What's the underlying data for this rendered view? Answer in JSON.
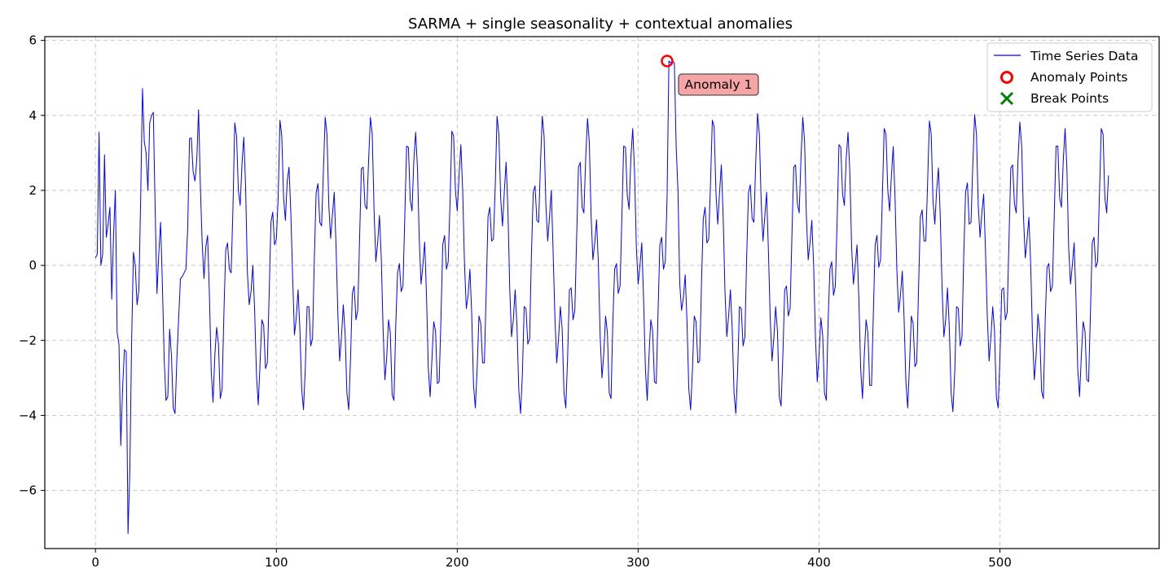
{
  "chart_data": {
    "type": "line",
    "title": "SARMA + single seasonality + contextual anomalies",
    "xlabel": "",
    "ylabel": "",
    "xlim": [
      -28,
      588
    ],
    "ylim": [
      -7.55,
      6.1
    ],
    "x_ticks": [
      0,
      100,
      200,
      300,
      400,
      500
    ],
    "y_ticks": [
      -6,
      -4,
      -2,
      0,
      2,
      4,
      6
    ],
    "x_tick_labels": [
      "0",
      "100",
      "200",
      "300",
      "400",
      "500"
    ],
    "y_tick_labels": [
      "−6",
      "−4",
      "−2",
      "0",
      "2",
      "4",
      "6"
    ],
    "grid": true,
    "legend_position": "top-right",
    "series": [
      {
        "name": "Time Series Data",
        "color": "#0000ff",
        "y": [
          0.2,
          0.3,
          3.55,
          0.0,
          0.3,
          2.95,
          0.75,
          1.1,
          1.55,
          -0.9,
          0.8,
          2.0,
          -1.8,
          -2.1,
          -4.8,
          -3.3,
          -2.25,
          -2.3,
          -7.15,
          -5.5,
          -2.0,
          0.35,
          0.0,
          -1.05,
          -0.65,
          1.8,
          4.72,
          3.3,
          3.0,
          2.0,
          3.8,
          4.0,
          4.08,
          1.5,
          -0.75,
          0.3,
          1.15,
          -0.5,
          -2.5,
          -3.6,
          -3.5,
          -1.7,
          -2.4,
          -3.8,
          -3.95,
          -2.5,
          -1.4,
          -0.35,
          -0.3,
          -0.2,
          -0.1,
          1.0,
          3.38,
          3.4,
          2.5,
          2.25,
          2.8,
          4.15,
          2.1,
          0.6,
          -0.35,
          0.5,
          0.8,
          -0.8,
          -2.8,
          -3.65,
          -2.4,
          -1.65,
          -2.1,
          -3.55,
          -3.3,
          -1.3,
          0.4,
          0.6,
          -0.1,
          -0.2,
          1.5,
          3.8,
          3.45,
          2.0,
          1.6,
          2.7,
          3.42,
          2.1,
          -0.2,
          -1.05,
          -0.7,
          0.0,
          -1.2,
          -2.9,
          -3.72,
          -2.6,
          -1.45,
          -1.6,
          -2.75,
          -2.6,
          -0.8,
          1.15,
          1.42,
          0.55,
          0.7,
          1.8,
          3.87,
          3.45,
          1.8,
          1.2,
          2.25,
          2.62,
          1.4,
          -0.3,
          -1.85,
          -1.4,
          -0.65,
          -1.7,
          -3.3,
          -3.85,
          -2.75,
          -1.1,
          -1.1,
          -2.15,
          -1.95,
          0.2,
          1.95,
          2.18,
          1.15,
          1.05,
          2.5,
          3.95,
          3.48,
          1.6,
          0.72,
          1.35,
          1.95,
          0.5,
          -1.3,
          -2.55,
          -1.9,
          -1.05,
          -1.8,
          -3.4,
          -3.85,
          -2.5,
          -0.75,
          -0.55,
          -1.45,
          -1.2,
          0.7,
          2.58,
          2.62,
          1.6,
          1.5,
          2.8,
          3.95,
          3.5,
          1.5,
          0.1,
          0.6,
          1.33,
          0.2,
          -1.7,
          -3.05,
          -2.45,
          -1.45,
          -1.8,
          -3.45,
          -3.6,
          -1.6,
          -0.2,
          0.05,
          -0.7,
          -0.55,
          1.3,
          3.18,
          3.15,
          1.75,
          1.45,
          2.8,
          3.55,
          2.6,
          0.7,
          -0.5,
          0.0,
          0.62,
          -0.8,
          -2.75,
          -3.5,
          -2.5,
          -1.5,
          -1.75,
          -3.15,
          -3.1,
          -1.4,
          0.55,
          0.8,
          -0.1,
          0.1,
          1.65,
          3.58,
          3.45,
          2.0,
          1.45,
          2.4,
          3.22,
          2.0,
          0.05,
          -1.15,
          -0.8,
          -0.1,
          -1.3,
          -3.2,
          -3.8,
          -2.75,
          -1.35,
          -1.55,
          -2.6,
          -2.6,
          -0.7,
          1.3,
          1.55,
          0.65,
          0.7,
          2.1,
          3.98,
          3.5,
          1.8,
          1.05,
          1.95,
          2.75,
          1.5,
          -0.6,
          -1.9,
          -1.45,
          -0.65,
          -1.6,
          -3.3,
          -3.95,
          -2.9,
          -1.1,
          -1.15,
          -2.1,
          -1.95,
          0.3,
          1.95,
          2.12,
          1.2,
          1.15,
          2.7,
          3.98,
          3.45,
          1.6,
          0.65,
          1.3,
          2.0,
          0.35,
          -1.4,
          -2.6,
          -1.95,
          -1.1,
          -1.7,
          -3.4,
          -3.8,
          -2.45,
          -0.65,
          -0.6,
          -1.45,
          -1.2,
          0.75,
          2.62,
          2.75,
          1.55,
          1.4,
          2.85,
          3.92,
          3.3,
          1.3,
          0.15,
          0.6,
          1.22,
          0.05,
          -1.9,
          -3.0,
          -2.35,
          -1.35,
          -1.8,
          -3.4,
          -3.55,
          -1.5,
          -0.1,
          0.05,
          -0.75,
          -0.55,
          1.3,
          3.18,
          3.15,
          1.85,
          1.5,
          2.9,
          3.65,
          2.5,
          0.5,
          -0.5,
          0.0,
          0.6,
          -0.9,
          -2.75,
          -3.6,
          -2.4,
          -1.45,
          -1.75,
          -3.1,
          -3.15,
          -1.25,
          0.55,
          0.75,
          -0.1,
          0.1,
          1.85,
          5.45,
          5.4,
          5.45,
          5.4,
          3.2,
          2.0,
          -0.5,
          -1.2,
          -0.85,
          -0.25,
          -1.5,
          -3.3,
          -3.85,
          -2.8,
          -1.35,
          -1.5,
          -2.6,
          -2.55,
          -0.5,
          1.25,
          1.55,
          0.6,
          0.7,
          2.2,
          3.87,
          3.7,
          1.95,
          1.1,
          1.95,
          2.68,
          1.3,
          -0.7,
          -1.9,
          -1.35,
          -0.65,
          -1.7,
          -3.4,
          -3.95,
          -2.8,
          -1.1,
          -1.15,
          -2.15,
          -1.9,
          0.25,
          1.95,
          2.15,
          1.25,
          1.15,
          2.75,
          4.05,
          3.5,
          1.7,
          0.65,
          1.3,
          1.95,
          0.4,
          -1.4,
          -2.55,
          -1.95,
          -1.1,
          -1.75,
          -3.5,
          -3.75,
          -2.4,
          -0.65,
          -0.55,
          -1.35,
          -1.15,
          0.8,
          2.62,
          2.68,
          1.65,
          1.4,
          2.85,
          3.95,
          3.3,
          1.3,
          0.15,
          0.6,
          1.2,
          0.0,
          -1.9,
          -3.1,
          -2.4,
          -1.4,
          -1.85,
          -3.4,
          -3.6,
          -1.5,
          -0.1,
          0.1,
          -0.8,
          -0.55,
          1.2,
          3.22,
          3.15,
          1.9,
          1.6,
          2.85,
          3.55,
          2.5,
          0.5,
          -0.5,
          0.0,
          0.55,
          -0.9,
          -2.75,
          -3.55,
          -2.4,
          -1.45,
          -1.8,
          -3.2,
          -3.2,
          -1.3,
          0.55,
          0.8,
          -0.05,
          0.15,
          1.85,
          3.65,
          3.5,
          2.0,
          1.45,
          2.4,
          3.17,
          1.8,
          -0.1,
          -1.25,
          -0.8,
          -0.15,
          -1.4,
          -3.1,
          -3.8,
          -2.65,
          -1.35,
          -1.55,
          -2.7,
          -2.6,
          -0.6,
          1.3,
          1.48,
          0.65,
          0.65,
          2.2,
          3.85,
          3.5,
          1.7,
          1.1,
          2.0,
          2.6,
          1.3,
          -0.6,
          -1.9,
          -1.45,
          -0.6,
          -1.65,
          -3.4,
          -3.9,
          -2.85,
          -1.1,
          -1.15,
          -2.15,
          -1.9,
          0.3,
          1.95,
          2.2,
          1.1,
          1.15,
          2.7,
          4.02,
          3.5,
          1.6,
          0.75,
          1.4,
          1.9,
          0.4,
          -1.35,
          -2.55,
          -1.9,
          -1.1,
          -1.75,
          -3.5,
          -3.8,
          -2.45,
          -0.65,
          -0.6,
          -1.45,
          -1.25,
          0.7,
          2.6,
          2.68,
          1.65,
          1.4,
          2.85,
          3.82,
          3.2,
          1.3,
          0.2,
          0.7,
          1.28,
          0.0,
          -1.9,
          -3.05,
          -2.4,
          -1.3,
          -1.8,
          -3.35,
          -3.55,
          -1.5,
          -0.05,
          0.05,
          -0.7,
          -0.55,
          1.3,
          3.18,
          3.18,
          1.8,
          1.55,
          2.8,
          3.65,
          2.6,
          0.45,
          -0.5,
          0.0,
          0.6,
          -0.85,
          -2.75,
          -3.5,
          -2.4,
          -1.5,
          -1.75,
          -3.05,
          -3.1,
          -1.3,
          0.6,
          0.75,
          -0.05,
          0.1,
          1.9,
          3.65,
          3.5,
          1.8,
          1.4,
          2.4
        ]
      },
      {
        "name": "Anomaly Points",
        "color": "#ff0000",
        "x": [
          316
        ],
        "y": [
          5.45
        ]
      },
      {
        "name": "Break Points",
        "color": "#008000",
        "x": [],
        "y": []
      }
    ],
    "annotations": [
      {
        "text": "Anomaly 1",
        "x": 316,
        "y": 5.45,
        "bg": "#f4a0a0"
      }
    ]
  }
}
